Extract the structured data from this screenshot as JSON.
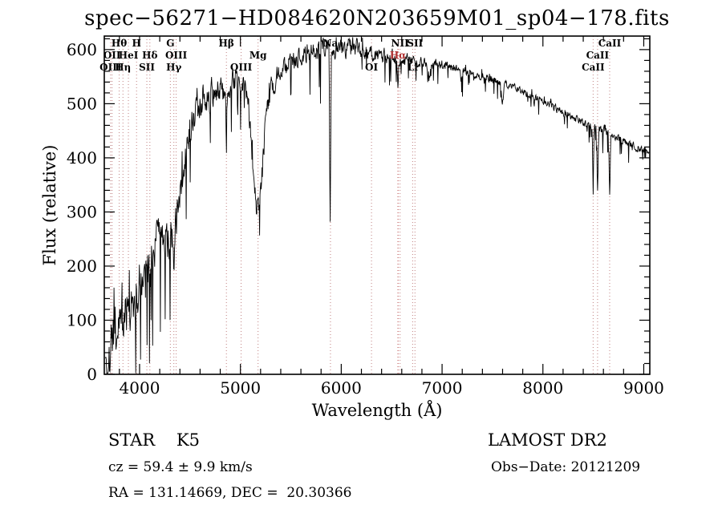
{
  "header": {
    "title": "spec−56271−HD084620N203659M01_sp04−178.fits"
  },
  "axes": {
    "x_label": "Wavelength (Å)",
    "y_label": "Flux (relative)"
  },
  "footer": {
    "classification": "STAR    K5",
    "survey": "LAMOST DR2",
    "cz": "cz = 59.4 ± 9.9 km/s",
    "obs_date": "Obs−Date: 20121209",
    "coords": "RA = 131.14669, DEC =  20.30366"
  },
  "chart_data": {
    "type": "line",
    "title": "spec−56271−HD084620N203659M01_sp04−178.fits",
    "xlabel": "Wavelength (Å)",
    "ylabel": "Flux (relative)",
    "xlim": [
      3650,
      9060
    ],
    "ylim": [
      0,
      625
    ],
    "x_ticks": [
      4000,
      5000,
      6000,
      7000,
      8000,
      9000
    ],
    "y_ticks": [
      0,
      100,
      200,
      300,
      400,
      500,
      600
    ],
    "x_minor_step": 200,
    "y_minor_step": 20,
    "line_color": "#000000",
    "marker_line_color": "#c08080",
    "halpha_color": "#b03030",
    "spectrum_envelope": [
      [
        3662,
        10
      ],
      [
        3690,
        15
      ],
      [
        3710,
        50
      ],
      [
        3730,
        75
      ],
      [
        3760,
        95
      ],
      [
        3790,
        85
      ],
      [
        3820,
        100
      ],
      [
        3850,
        115
      ],
      [
        3890,
        125
      ],
      [
        3930,
        120
      ],
      [
        3970,
        140
      ],
      [
        4000,
        170
      ],
      [
        4040,
        195
      ],
      [
        4080,
        185
      ],
      [
        4120,
        205
      ],
      [
        4160,
        235
      ],
      [
        4200,
        260
      ],
      [
        4240,
        270
      ],
      [
        4280,
        245
      ],
      [
        4320,
        255
      ],
      [
        4360,
        290
      ],
      [
        4400,
        330
      ],
      [
        4440,
        390
      ],
      [
        4480,
        440
      ],
      [
        4520,
        465
      ],
      [
        4560,
        485
      ],
      [
        4600,
        500
      ],
      [
        4640,
        515
      ],
      [
        4680,
        505
      ],
      [
        4720,
        515
      ],
      [
        4760,
        525
      ],
      [
        4800,
        530
      ],
      [
        4840,
        520
      ],
      [
        4880,
        530
      ],
      [
        4920,
        545
      ],
      [
        4960,
        550
      ],
      [
        5000,
        545
      ],
      [
        5040,
        540
      ],
      [
        5080,
        500
      ],
      [
        5120,
        400
      ],
      [
        5160,
        310
      ],
      [
        5185,
        295
      ],
      [
        5210,
        350
      ],
      [
        5240,
        440
      ],
      [
        5280,
        505
      ],
      [
        5320,
        535
      ],
      [
        5360,
        550
      ],
      [
        5400,
        560
      ],
      [
        5440,
        565
      ],
      [
        5480,
        572
      ],
      [
        5520,
        578
      ],
      [
        5560,
        582
      ],
      [
        5600,
        585
      ],
      [
        5650,
        590
      ],
      [
        5700,
        592
      ],
      [
        5750,
        596
      ],
      [
        5800,
        600
      ],
      [
        5850,
        602
      ],
      [
        5900,
        598
      ],
      [
        5950,
        602
      ],
      [
        6000,
        605
      ],
      [
        6050,
        602
      ],
      [
        6100,
        608
      ],
      [
        6150,
        604
      ],
      [
        6200,
        600
      ],
      [
        6250,
        596
      ],
      [
        6300,
        592
      ],
      [
        6350,
        590
      ],
      [
        6400,
        588
      ],
      [
        6450,
        586
      ],
      [
        6500,
        582
      ],
      [
        6550,
        578
      ],
      [
        6600,
        580
      ],
      [
        6650,
        580
      ],
      [
        6700,
        578
      ],
      [
        6750,
        576
      ],
      [
        6800,
        576
      ],
      [
        6850,
        572
      ],
      [
        6900,
        572
      ],
      [
        6950,
        574
      ],
      [
        7000,
        572
      ],
      [
        7100,
        566
      ],
      [
        7200,
        561
      ],
      [
        7300,
        556
      ],
      [
        7400,
        551
      ],
      [
        7500,
        546
      ],
      [
        7600,
        538
      ],
      [
        7700,
        532
      ],
      [
        7800,
        523
      ],
      [
        7900,
        514
      ],
      [
        8000,
        504
      ],
      [
        8100,
        494
      ],
      [
        8200,
        484
      ],
      [
        8300,
        474
      ],
      [
        8400,
        465
      ],
      [
        8500,
        456
      ],
      [
        8600,
        449
      ],
      [
        8700,
        441
      ],
      [
        8800,
        431
      ],
      [
        8900,
        421
      ],
      [
        9000,
        412
      ],
      [
        9060,
        414
      ]
    ],
    "noise_amplitude": [
      [
        3662,
        60
      ],
      [
        3900,
        60
      ],
      [
        4100,
        55
      ],
      [
        4300,
        50
      ],
      [
        4500,
        42
      ],
      [
        4700,
        35
      ],
      [
        4900,
        30
      ],
      [
        5100,
        30
      ],
      [
        5300,
        28
      ],
      [
        5500,
        26
      ],
      [
        5700,
        25
      ],
      [
        5900,
        24
      ],
      [
        6100,
        22
      ],
      [
        6300,
        18
      ],
      [
        6500,
        15
      ],
      [
        6700,
        13
      ],
      [
        6900,
        12
      ],
      [
        7100,
        11
      ],
      [
        7400,
        10
      ],
      [
        7700,
        9
      ],
      [
        8000,
        9
      ],
      [
        8300,
        9
      ],
      [
        8600,
        11
      ],
      [
        9060,
        9
      ]
    ],
    "absorption_features": [
      {
        "center": 4102,
        "depth": 40,
        "sigma": 5
      },
      {
        "center": 4340,
        "depth": 45,
        "sigma": 5
      },
      {
        "center": 4861,
        "depth": 75,
        "sigma": 6
      },
      {
        "center": 5890,
        "depth": 330,
        "sigma": 5
      },
      {
        "center": 6563,
        "depth": 55,
        "sigma": 5
      },
      {
        "center": 6870,
        "depth": 28,
        "sigma": 9
      },
      {
        "center": 7190,
        "depth": 18,
        "sigma": 9
      },
      {
        "center": 7600,
        "depth": 35,
        "sigma": 10
      },
      {
        "center": 8498,
        "depth": 95,
        "sigma": 5
      },
      {
        "center": 8542,
        "depth": 115,
        "sigma": 5
      },
      {
        "center": 8662,
        "depth": 105,
        "sigma": 5
      }
    ],
    "line_markers": [
      {
        "label": "Hθ",
        "wavelength": 3798,
        "row": 0
      },
      {
        "label": "H",
        "wavelength": 3970,
        "row": 0
      },
      {
        "label": "G",
        "wavelength": 4305,
        "row": 0
      },
      {
        "label": "Hβ",
        "wavelength": 4861,
        "row": 0
      },
      {
        "label": "Na",
        "wavelength": 5893,
        "row": 0
      },
      {
        "label": "NII",
        "wavelength": 6583,
        "row": 0
      },
      {
        "label": "SII",
        "wavelength": 6731,
        "row": 0
      },
      {
        "label": "CaII",
        "wavelength": 8662,
        "row": 0
      },
      {
        "label": "OII",
        "wavelength": 3727,
        "row": 1
      },
      {
        "label": "HeI",
        "wavelength": 3889,
        "row": 1
      },
      {
        "label": "Hδ",
        "wavelength": 4102,
        "row": 1
      },
      {
        "label": "OIII",
        "wavelength": 4363,
        "row": 1
      },
      {
        "label": "Mg",
        "wavelength": 5175,
        "row": 1
      },
      {
        "label": "Hα",
        "wavelength": 6563,
        "row": 1,
        "color": "#b03030"
      },
      {
        "label": "CaII",
        "wavelength": 8542,
        "row": 1
      },
      {
        "label": "OIII",
        "wavelength": 3712,
        "row": 2
      },
      {
        "label": "Hη",
        "wavelength": 3835,
        "row": 2
      },
      {
        "label": "SII",
        "wavelength": 4072,
        "row": 2
      },
      {
        "label": "Hγ",
        "wavelength": 4340,
        "row": 2
      },
      {
        "label": "OIII",
        "wavelength": 5007,
        "row": 2
      },
      {
        "label": "OI",
        "wavelength": 6300,
        "row": 2
      },
      {
        "label": "Li",
        "wavelength": 6708,
        "row": 2
      },
      {
        "label": "CaII",
        "wavelength": 8498,
        "row": 2
      }
    ]
  }
}
